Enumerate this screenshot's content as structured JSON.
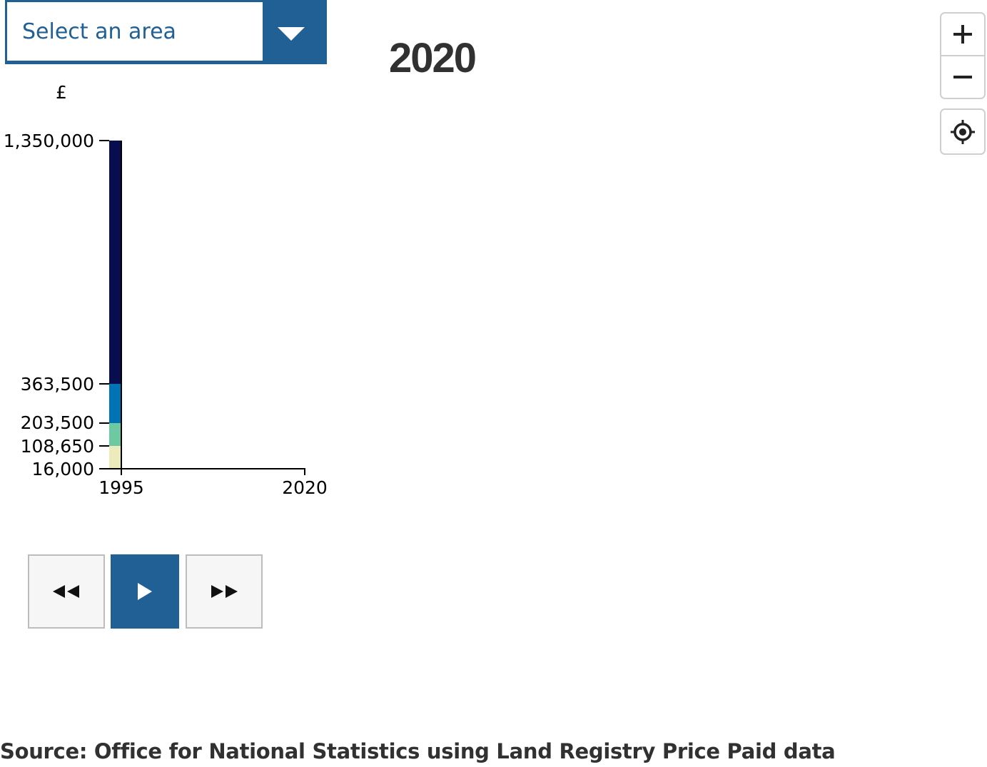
{
  "area_select": {
    "placeholder": "Select an area"
  },
  "year_title": "2020",
  "map_controls": {
    "zoom_in": "+",
    "zoom_out": "−",
    "locate_icon": "locate-icon"
  },
  "chart_data": {
    "type": "bar",
    "ylabel": "£",
    "y_ticks": [
      "1,350,000",
      "363,500",
      "203,500",
      "108,650",
      "16,000"
    ],
    "x_ticks": [
      "1995",
      "2020"
    ],
    "bands": [
      {
        "from": 16000,
        "to": 108650,
        "color": "#ebebbb"
      },
      {
        "from": 108650,
        "to": 203500,
        "color": "#6dc9a1"
      },
      {
        "from": 203500,
        "to": 363500,
        "color": "#0072b6"
      },
      {
        "from": 363500,
        "to": 1350000,
        "color": "#080d50"
      }
    ]
  },
  "playback": {
    "back_icon": "rewind-icon",
    "play_icon": "play-icon",
    "forward_icon": "fast-forward-icon"
  },
  "source": "Source: Office for National Statistics using Land Registry Price Paid data",
  "colors": {
    "accent": "#206095",
    "title": "#323132"
  }
}
